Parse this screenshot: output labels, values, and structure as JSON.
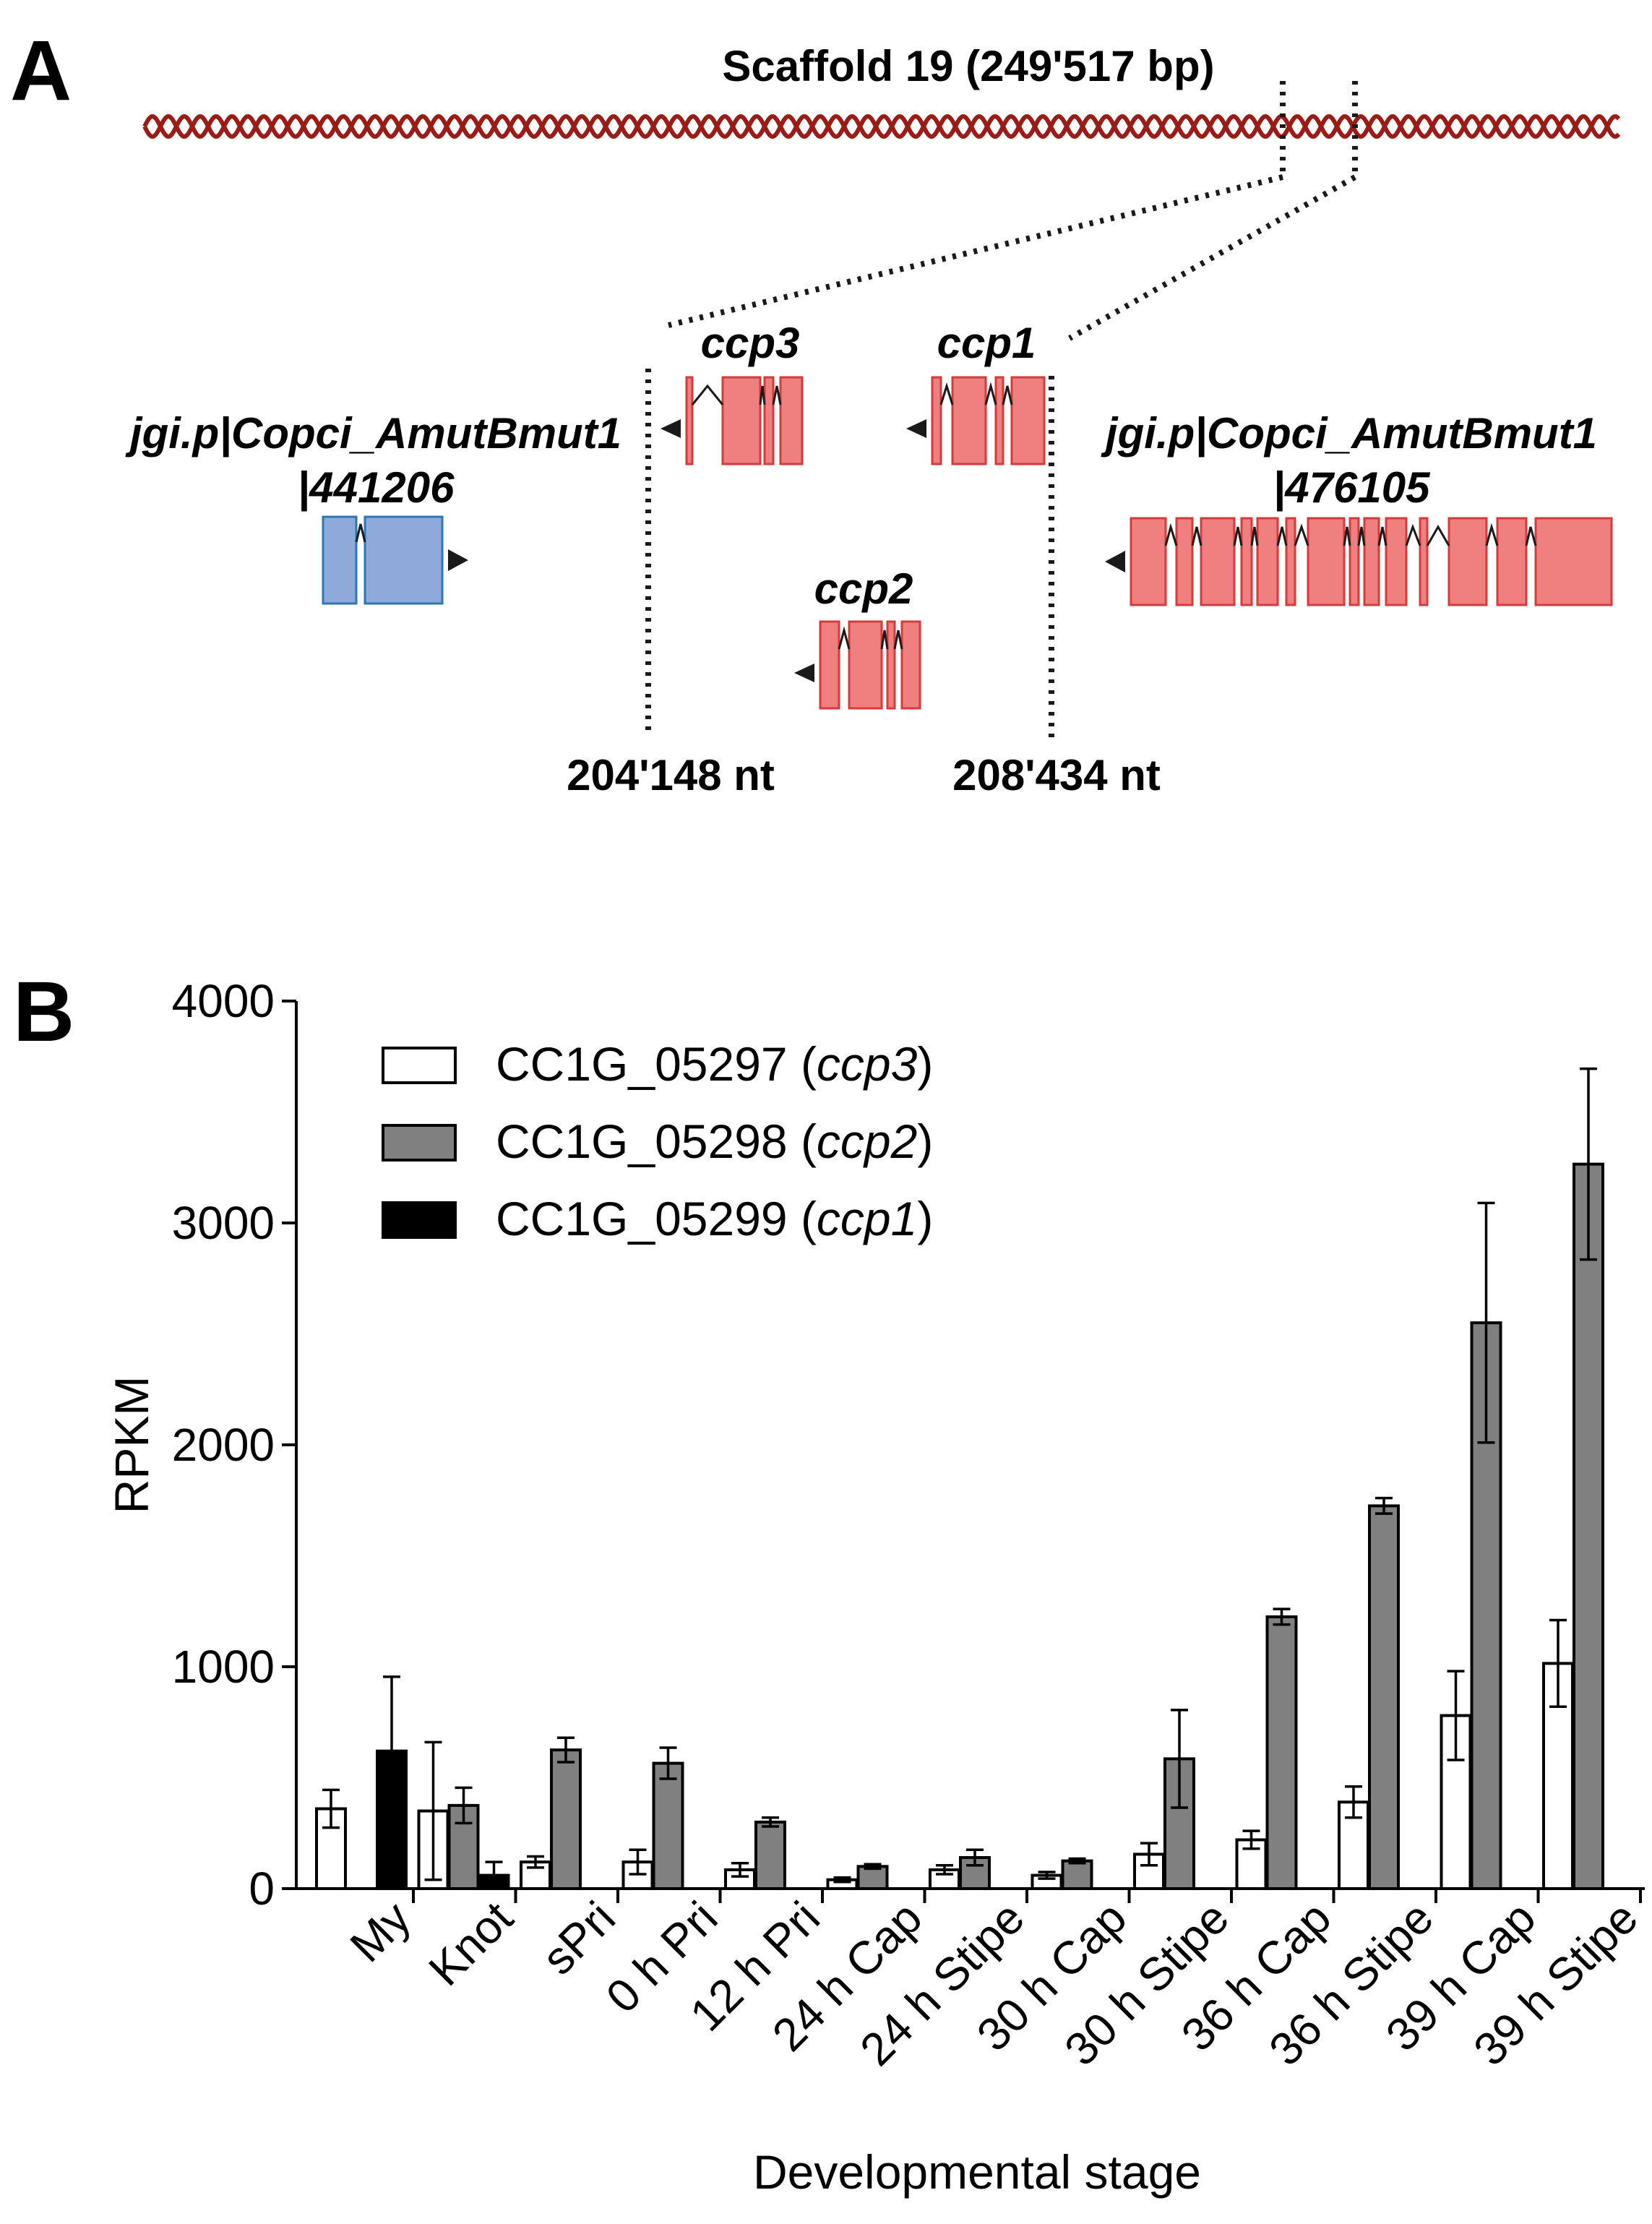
{
  "panelA": {
    "label": "A",
    "scaffold_title": "Scaffold 19 (249'517 bp)",
    "genes": {
      "ccp3": "ccp3",
      "ccp1": "ccp1",
      "ccp2": "ccp2",
      "left_gene_line1": "jgi.p|Copci_AmutBmut1",
      "left_gene_line2": "|441206",
      "right_gene_line1": "jgi.p|Copci_AmutBmut1",
      "right_gene_line2": "|476105"
    },
    "coord_left": "204'148 nt",
    "coord_right": "208'434 nt",
    "colors": {
      "dna": "#9b1c16",
      "gene_red": "#f08080",
      "gene_red_stroke": "#d63a3a",
      "gene_blue": "#8eaadb",
      "gene_blue_stroke": "#2e75b6"
    }
  },
  "panelB": {
    "label": "B"
  },
  "chart_data": {
    "type": "bar",
    "title": "",
    "xlabel": "Developmental stage",
    "ylabel": "RPKM",
    "ylim": [
      0,
      4000
    ],
    "yticks": [
      0,
      1000,
      2000,
      3000,
      4000
    ],
    "categories": [
      "My",
      "Knot",
      "sPri",
      "0 h Pri",
      "12 h Pri",
      "24 h Cap",
      "24 h Stipe",
      "30 h Cap",
      "30 h Stipe",
      "36 h Cap",
      "36 h Stipe",
      "39 h Cap",
      "39 h Stipe"
    ],
    "series": [
      {
        "name": "CC1G_05297",
        "gene": "ccp3",
        "color": "#ffffff",
        "values": [
          360,
          350,
          120,
          120,
          85,
          40,
          85,
          60,
          155,
          220,
          390,
          780,
          1015
        ],
        "errors": [
          85,
          310,
          25,
          55,
          30,
          10,
          20,
          15,
          50,
          40,
          70,
          200,
          195
        ]
      },
      {
        "name": "CC1G_05298",
        "gene": "ccp2",
        "color": "#808080",
        "values": [
          0,
          375,
          625,
          565,
          300,
          100,
          140,
          125,
          585,
          1225,
          1725,
          2550,
          3265
        ],
        "errors": [
          0,
          80,
          55,
          70,
          20,
          10,
          35,
          10,
          220,
          35,
          35,
          540,
          430
        ]
      },
      {
        "name": "CC1G_05299",
        "gene": "ccp1",
        "color": "#000000",
        "values": [
          620,
          60,
          0,
          0,
          0,
          0,
          0,
          0,
          0,
          0,
          0,
          0,
          0
        ],
        "errors": [
          335,
          60,
          0,
          0,
          0,
          0,
          0,
          0,
          0,
          0,
          0,
          0,
          0
        ]
      }
    ],
    "legend_position": "top-left"
  }
}
